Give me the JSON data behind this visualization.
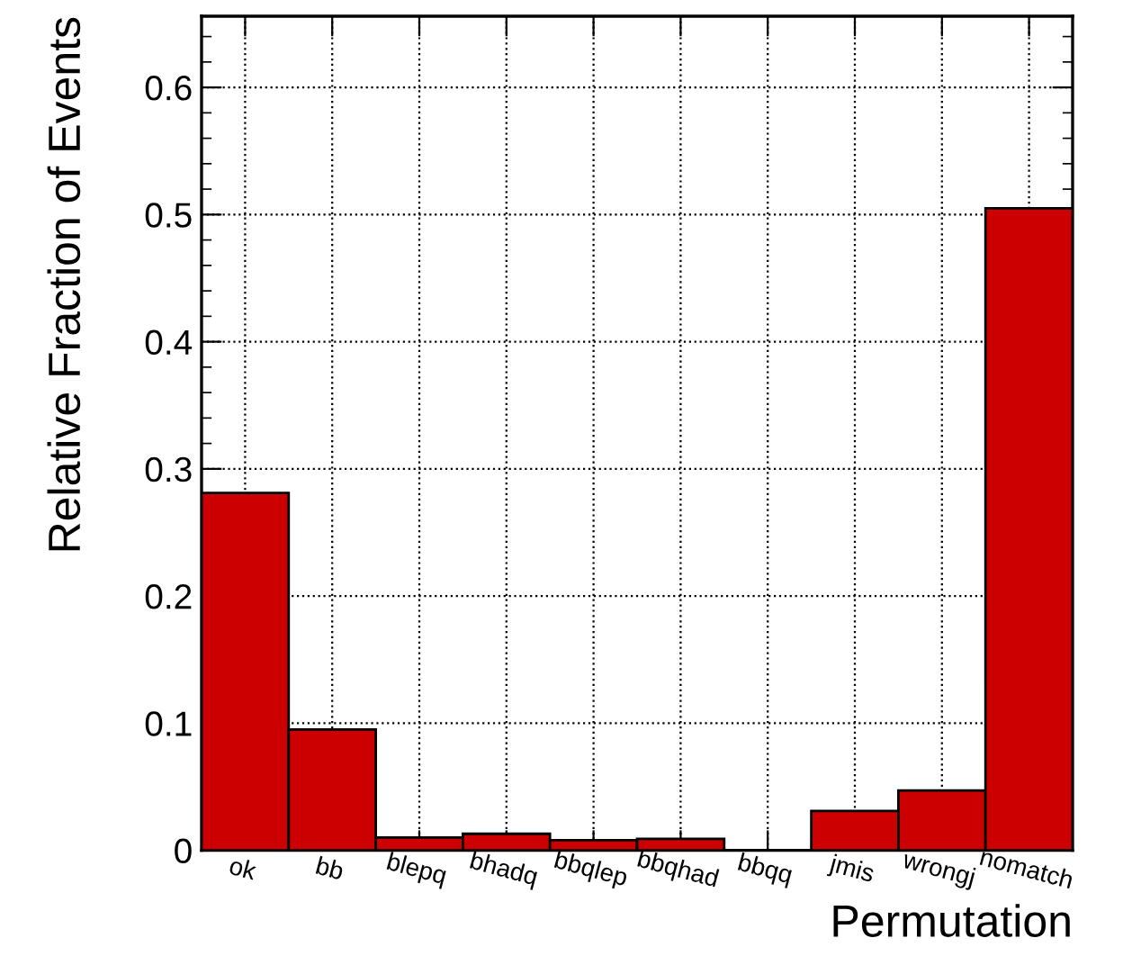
{
  "chart_data": {
    "type": "bar",
    "xlabel": "Permutation",
    "ylabel": "Relative Fraction of Events",
    "categories": [
      "ok",
      "bb",
      "blepq",
      "bhadq",
      "bbqlep",
      "bbqhad",
      "bbqq",
      "jmis",
      "wrongj",
      "nomatch"
    ],
    "values": [
      0.281,
      0.095,
      0.01,
      0.013,
      0.008,
      0.009,
      0.0,
      0.031,
      0.047,
      0.505
    ],
    "color": "#cc0000",
    "ylim": [
      0,
      0.656
    ],
    "yticks": [
      0,
      0.1,
      0.2,
      0.3,
      0.4,
      0.5,
      0.6
    ],
    "grid": true
  }
}
